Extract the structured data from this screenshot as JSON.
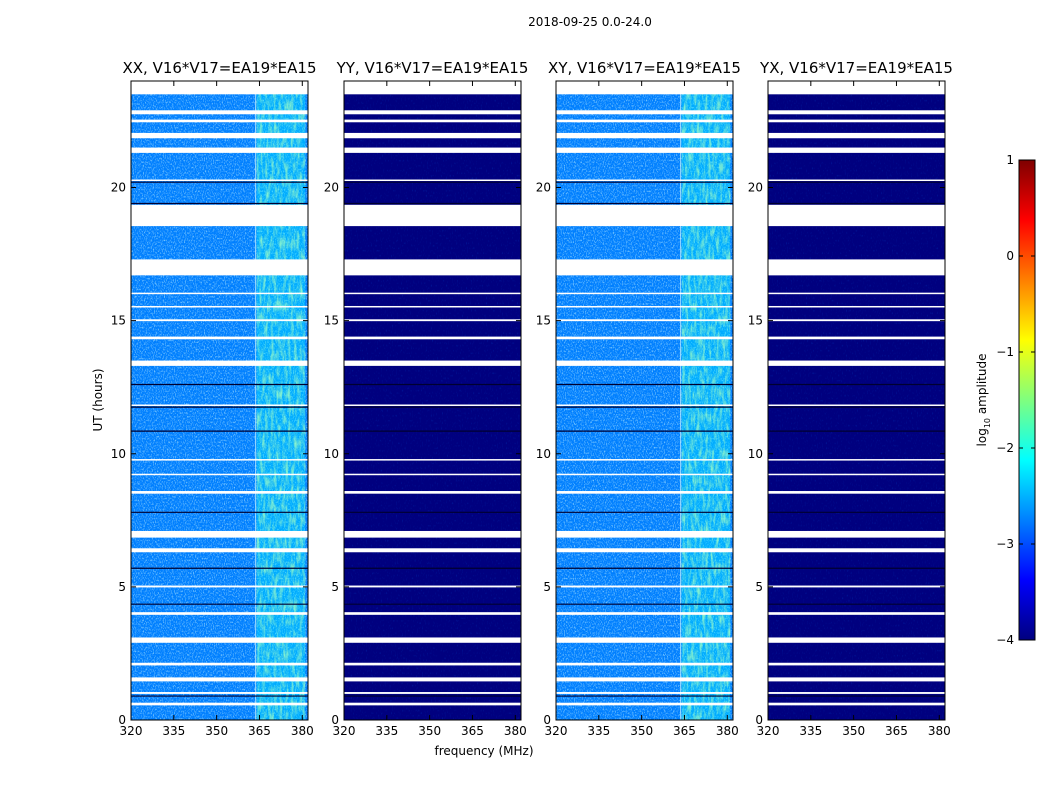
{
  "figure": {
    "title": "2018-09-25 0.0-24.0",
    "xlabel": "frequency (MHz)",
    "ylabel": "UT (hours)",
    "colorbar_label": "log",
    "colorbar_label_sub": "10",
    "colorbar_label_tail": " amplitude"
  },
  "chart_data": [
    {
      "type": "heatmap",
      "title": "XX, V16*V17=EA19*EA15",
      "x": {
        "range": [
          320,
          382
        ],
        "ticks": [
          320,
          335,
          350,
          365,
          380
        ],
        "tick_labels": [
          "320",
          "335",
          "350",
          "365",
          "380"
        ],
        "label": ""
      },
      "y": {
        "range": [
          0,
          24
        ],
        "ticks": [
          0,
          5,
          10,
          15,
          20
        ],
        "tick_labels": [
          "0",
          "5",
          "10",
          "15",
          "20"
        ],
        "label": "UT (hours)"
      },
      "z": {
        "range": [
          -4,
          1
        ],
        "background_log_amplitude": -3.0,
        "rfi_bands_MHz": [
          [
            362,
            364
          ],
          [
            364,
            381
          ]
        ],
        "rfi_band_log_amplitude": -2.2
      }
    },
    {
      "type": "heatmap",
      "title": "YY, V16*V17=EA19*EA15",
      "x": {
        "range": [
          320,
          382
        ],
        "ticks": [
          320,
          335,
          350,
          365,
          380
        ],
        "tick_labels": [
          "320",
          "335",
          "350",
          "365",
          "380"
        ],
        "label": "frequency (MHz)"
      },
      "y": {
        "range": [
          0,
          24
        ],
        "ticks": [
          0,
          5,
          10,
          15,
          20
        ],
        "tick_labels": [
          "0",
          "5",
          "10",
          "15",
          "20"
        ],
        "label": ""
      },
      "z": {
        "range": [
          -4,
          1
        ],
        "background_log_amplitude": -4.0
      }
    },
    {
      "type": "heatmap",
      "title": "XY, V16*V17=EA19*EA15",
      "x": {
        "range": [
          320,
          382
        ],
        "ticks": [
          320,
          335,
          350,
          365,
          380
        ],
        "tick_labels": [
          "320",
          "335",
          "350",
          "365",
          "380"
        ],
        "label": ""
      },
      "y": {
        "range": [
          0,
          24
        ],
        "ticks": [
          0,
          5,
          10,
          15,
          20
        ],
        "tick_labels": [
          "0",
          "5",
          "10",
          "15",
          "20"
        ],
        "label": ""
      },
      "z": {
        "range": [
          -4,
          1
        ],
        "background_log_amplitude": -3.0,
        "rfi_bands_MHz": [
          [
            362,
            364
          ],
          [
            364,
            381
          ]
        ],
        "rfi_band_log_amplitude": -2.2
      }
    },
    {
      "type": "heatmap",
      "title": "YX, V16*V17=EA19*EA15",
      "x": {
        "range": [
          320,
          382
        ],
        "ticks": [
          320,
          335,
          350,
          365,
          380
        ],
        "tick_labels": [
          "320",
          "335",
          "350",
          "365",
          "380"
        ],
        "label": ""
      },
      "y": {
        "range": [
          0,
          24
        ],
        "ticks": [
          0,
          5,
          10,
          15,
          20
        ],
        "tick_labels": [
          "0",
          "5",
          "10",
          "15",
          "20"
        ],
        "label": ""
      },
      "z": {
        "range": [
          -4,
          1
        ],
        "background_log_amplitude": -4.0
      }
    }
  ],
  "colorbar": {
    "range": [
      -4,
      1
    ],
    "ticks": [
      1,
      0,
      -1,
      -2,
      -3,
      -4
    ],
    "tick_labels": [
      "1",
      "0",
      "−1",
      "−2",
      "−3",
      "−4"
    ],
    "colors": [
      "#00007f",
      "#0000ff",
      "#007fff",
      "#00ffff",
      "#7fff7f",
      "#ffff00",
      "#ff7f00",
      "#ff0000",
      "#7f0000"
    ]
  },
  "flagged_gaps_UT_hours": [
    [
      19.35,
      18.55
    ],
    [
      17.3,
      16.7
    ],
    [
      23.85,
      23.5
    ],
    [
      22.9,
      22.75
    ],
    [
      22.55,
      22.45
    ],
    [
      22.05,
      21.85
    ],
    [
      21.5,
      21.3
    ],
    [
      20.3,
      20.25
    ],
    [
      15.05,
      14.98
    ],
    [
      14.4,
      14.3
    ],
    [
      13.5,
      13.3
    ],
    [
      7.1,
      6.85
    ],
    [
      6.45,
      6.3
    ],
    [
      4.05,
      3.95
    ],
    [
      3.1,
      2.9
    ],
    [
      2.15,
      2.05
    ],
    [
      1.6,
      1.45
    ],
    [
      1.05,
      0.98
    ],
    [
      0.65,
      0.55
    ],
    [
      8.6,
      8.5
    ],
    [
      5.05,
      4.98
    ],
    [
      16.05,
      16.0
    ],
    [
      15.55,
      15.5
    ],
    [
      9.8,
      9.75
    ],
    [
      9.25,
      9.2
    ],
    [
      11.85,
      11.8
    ]
  ],
  "dark_lines_UT_hours": [
    20.2,
    19.4,
    13.35,
    12.6,
    11.75,
    10.85,
    7.8,
    6.95,
    5.7,
    4.35,
    0.9
  ]
}
